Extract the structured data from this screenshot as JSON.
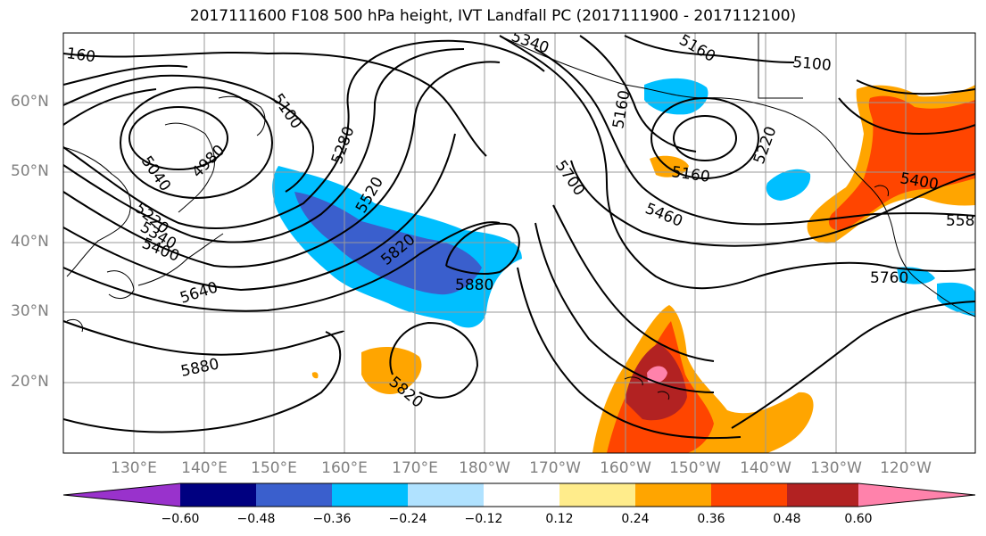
{
  "title": "2017111600 F108 500 hPa height, IVT Landfall PC (2017111900 - 2017112100)",
  "lat_labels": [
    "60°N",
    "50°N",
    "40°N",
    "30°N",
    "20°N"
  ],
  "lon_labels": [
    "130°E",
    "140°E",
    "150°E",
    "160°E",
    "170°E",
    "180°W",
    "170°W",
    "160°W",
    "150°W",
    "140°W",
    "130°W",
    "120°W"
  ],
  "contour_labels": [
    "160",
    "5100",
    "5160",
    "5340",
    "5160",
    "5220",
    "5160",
    "5100",
    "5040",
    "4980",
    "5280",
    "5520",
    "5220",
    "5340",
    "5400",
    "5640",
    "5820",
    "5880",
    "5820",
    "5880",
    "5700",
    "5460",
    "5400",
    "5760",
    "558"
  ],
  "colorbar": {
    "ticks": [
      "−0.60",
      "−0.48",
      "−0.36",
      "−0.24",
      "−0.12",
      "0.12",
      "0.24",
      "0.36",
      "0.48",
      "0.60"
    ],
    "colors": [
      "#9932cc",
      "#000080",
      "#3a5fcd",
      "#00bfff",
      "#b0e2ff",
      "#ffffff",
      "#ffec8b",
      "#ffa500",
      "#ff4500",
      "#b22222",
      "#ff82ab"
    ]
  }
}
